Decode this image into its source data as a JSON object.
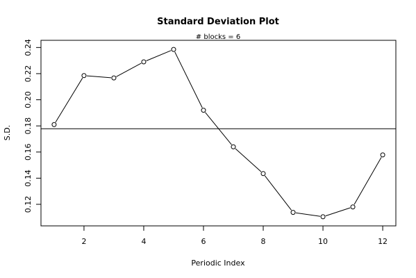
{
  "chart_data": {
    "type": "line",
    "title": "Standard Deviation Plot",
    "subtitle": "# blocks =  6",
    "xlabel": "Periodic Index",
    "ylabel": "S.D.",
    "x": [
      1,
      2,
      3,
      4,
      5,
      6,
      7,
      8,
      9,
      10,
      11,
      12
    ],
    "y": [
      0.181,
      0.2185,
      0.2167,
      0.229,
      0.2385,
      0.192,
      0.164,
      0.1435,
      0.1138,
      0.1105,
      0.118,
      0.1578
    ],
    "xlim": [
      0.56,
      12.44
    ],
    "ylim": [
      0.1035,
      0.2455
    ],
    "xticks": [
      2,
      4,
      6,
      8,
      10,
      12
    ],
    "yticks": [
      0.12,
      0.14,
      0.16,
      0.18,
      0.2,
      0.22,
      0.24
    ],
    "yticklabels": [
      "0.12",
      "0.14",
      "0.16",
      "0.18",
      "0.20",
      "0.22",
      "0.24"
    ],
    "reference_line": 0.1778,
    "marker": "open-circle",
    "grid": false,
    "colors": {
      "line": "#000000",
      "background": "#ffffff"
    }
  }
}
